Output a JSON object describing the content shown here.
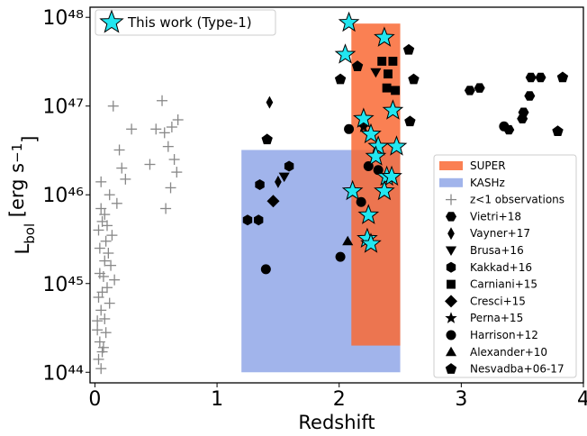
{
  "chart_data": {
    "type": "scatter",
    "xlabel": "Redshift",
    "ylabel": [
      "L",
      "bol",
      " [erg s",
      "−1",
      "]"
    ],
    "xlim": [
      -0.04,
      4
    ],
    "ylim": [
      7.6e+43,
      1.3e+48
    ],
    "log_y": true,
    "xticks": [
      0,
      1,
      2,
      3,
      4
    ],
    "yticks": [
      {
        "value": 1e+44,
        "label": "10⁴⁴"
      },
      {
        "value": 1e+45,
        "label": "10⁴⁵"
      },
      {
        "value": 1e+46,
        "label": "10⁴⁶"
      },
      {
        "value": 1e+47,
        "label": "10⁴⁷"
      },
      {
        "value": 1e+48,
        "label": "10⁴⁸"
      }
    ],
    "regions": [
      {
        "name": "SUPER",
        "color": "#f96a35",
        "x": [
          2.1,
          2.5
        ],
        "y": [
          2e+44,
          8.5e+47
        ]
      },
      {
        "name": "KASHz",
        "color": "#6f8ce0",
        "x": [
          1.2,
          2.5
        ],
        "y": [
          1e+44,
          3.2e+46
        ]
      }
    ],
    "series": [
      {
        "name": "This work (Type-1)",
        "marker": "star",
        "color": "#22e6f0",
        "x": [
          2.08,
          2.05,
          2.37,
          2.2,
          2.44,
          2.26,
          2.32,
          2.47,
          2.3,
          2.39,
          2.43,
          2.11,
          2.37,
          2.24,
          2.23,
          2.26
        ],
        "y": [
          8.7e+47,
          3.8e+47,
          5.9e+47,
          7.2e+46,
          8.9e+46,
          4.8e+46,
          3.5e+46,
          3.5e+46,
          2.7e+46,
          1.6e+46,
          1.6e+46,
          1.1e+46,
          1.1e+46,
          5.9e+45,
          3.2e+45,
          2.8e+45
        ]
      },
      {
        "name": "z<1 observations",
        "marker": "plus",
        "color": "#888888",
        "x": [
          0.15,
          0.3,
          0.22,
          0.2,
          0.25,
          0.12,
          0.18,
          0.08,
          0.1,
          0.14,
          0.05,
          0.06,
          0.09,
          0.11,
          0.13,
          0.04,
          0.07,
          0.1,
          0.16,
          0.03,
          0.05,
          0.08,
          0.12,
          0.02,
          0.04,
          0.06,
          0.09,
          0.03,
          0.05,
          0.07,
          0.02,
          0.06,
          0.04,
          0.08,
          0.03,
          0.05,
          0.55,
          0.57,
          0.6,
          0.65,
          0.68,
          0.62,
          0.5,
          0.58,
          0.45,
          0.67,
          0.63
        ],
        "y": [
          1e+47,
          5.5e+46,
          2e+46,
          3.2e+46,
          1.5e+46,
          1e+46,
          8e+45,
          6e+45,
          4.5e+45,
          3.5e+45,
          1.4e+46,
          5e+45,
          3e+45,
          2.2e+45,
          1.6e+45,
          2.5e+45,
          1.2e+45,
          9e+44,
          1.1e+45,
          7e+44,
          5e+44,
          4e+44,
          6e+44,
          3e+44,
          2.2e+44,
          1.7e+44,
          2.8e+44,
          1.4e+44,
          1.1e+44,
          1.9e+44,
          3.8e+44,
          8e+44,
          1.3e+45,
          1.8e+45,
          4e+45,
          7e+45,
          1.15e+47,
          5e+46,
          3.5e+46,
          2.5e+46,
          7e+46,
          1.2e+46,
          5.5e+46,
          7e+45,
          2.2e+46,
          1.8e+46,
          5.8e+46
        ]
      },
      {
        "name": "Vietri+18",
        "marker": "hexagon2",
        "color": "#000000",
        "x": [
          3.07,
          3.15,
          3.57,
          3.65,
          3.56,
          3.51,
          3.5,
          3.39
        ],
        "y": [
          1.5e+47,
          1.6e+47,
          2.1e+47,
          2.1e+47,
          1.3e+47,
          8.5e+46,
          7.2e+46,
          5.4e+46
        ]
      },
      {
        "name": "Vayner+17",
        "marker": "thin_diamond",
        "color": "#000000",
        "x": [
          1.43,
          1.5
        ],
        "y": [
          1.1e+47,
          1.4e+46
        ]
      },
      {
        "name": "Brusa+16",
        "marker": "triangle_down",
        "color": "#000000",
        "x": [
          1.55,
          2.3
        ],
        "y": [
          1.6e+46,
          2.4e+47
        ]
      },
      {
        "name": "Kakkad+16",
        "marker": "hexagon",
        "color": "#000000",
        "x": [
          1.35,
          1.25,
          1.34,
          1.59
        ],
        "y": [
          1.3e+46,
          5.2e+45,
          5.2e+45,
          2.1e+46
        ]
      },
      {
        "name": "Carniani+15",
        "marker": "square",
        "color": "#000000",
        "x": [
          2.35,
          2.44,
          2.4,
          2.39,
          2.46
        ],
        "y": [
          3.2e+47,
          3.2e+47,
          2.3e+47,
          1.6e+47,
          1.5e+47
        ]
      },
      {
        "name": "Cresci+15",
        "marker": "diamond",
        "color": "#000000",
        "x": [
          1.46
        ],
        "y": [
          8.5e+45
        ]
      },
      {
        "name": "Perna+15",
        "marker": "small_star",
        "color": "#000000",
        "x": [
          2.2
        ],
        "y": [
          5.8e+46
        ]
      },
      {
        "name": "Harrison+12",
        "marker": "circle",
        "color": "#000000",
        "x": [
          1.4,
          2.01,
          2.08,
          2.24,
          2.32,
          3.35,
          2.18
        ],
        "y": [
          1.45e+45,
          2e+45,
          5.5e+46,
          2.1e+46,
          1.9e+46,
          5.9e+46,
          8.3e+45
        ]
      },
      {
        "name": "Alexander+10",
        "marker": "triangle",
        "color": "#000000",
        "x": [
          2.07
        ],
        "y": [
          3e+45
        ]
      },
      {
        "name": "Nesvadba+06-17",
        "marker": "pentagon",
        "color": "#000000",
        "x": [
          1.41,
          2.57,
          2.61,
          2.58,
          3.83,
          3.79,
          2.01,
          2.15
        ],
        "y": [
          4.2e+46,
          4.3e+47,
          2e+47,
          6.7e+46,
          2.1e+47,
          5.2e+46,
          2e+47,
          2.8e+47
        ]
      }
    ]
  }
}
